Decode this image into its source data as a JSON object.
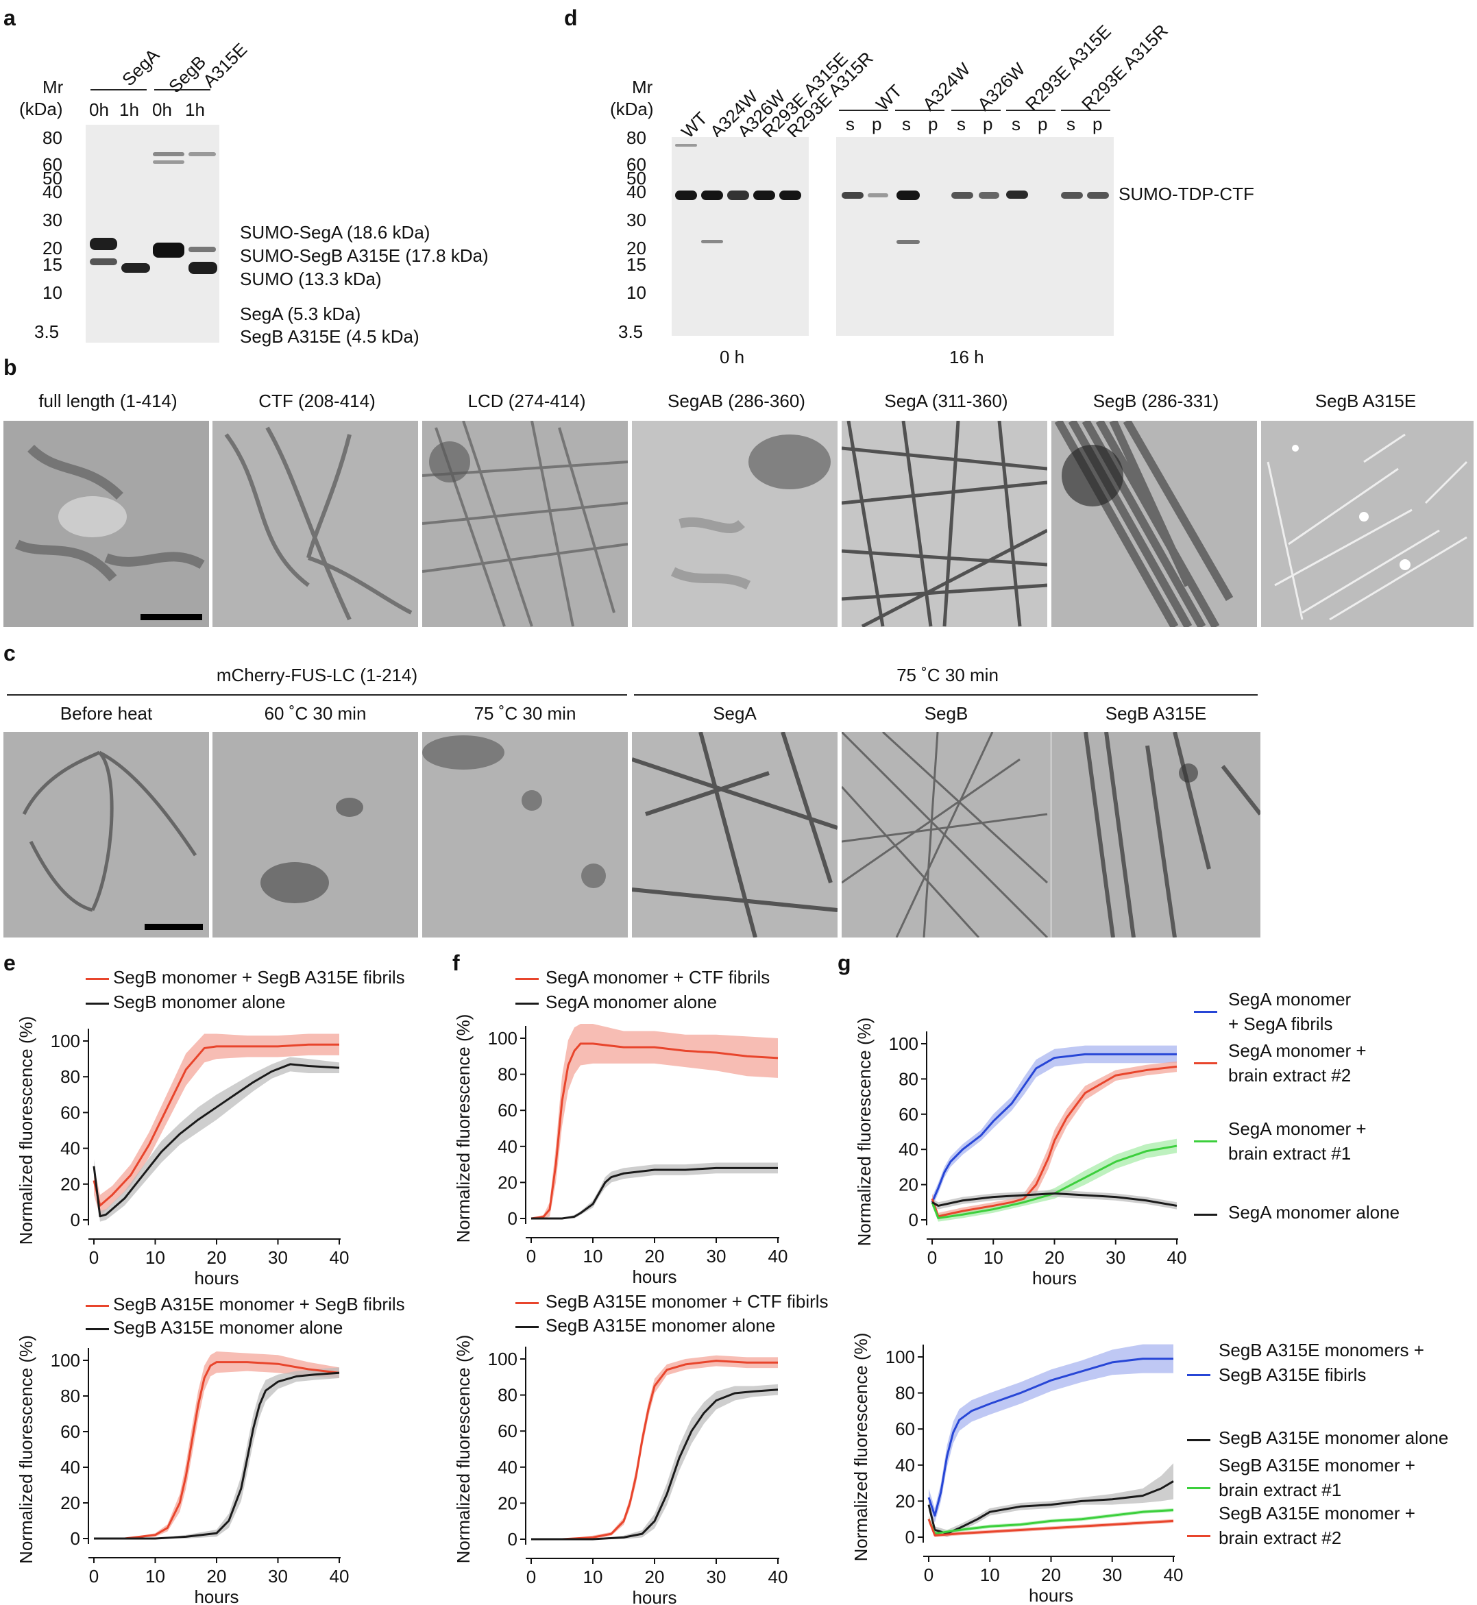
{
  "panel_labels": {
    "a": "a",
    "b": "b",
    "c": "c",
    "d": "d",
    "e": "e",
    "f": "f",
    "g": "g"
  },
  "panel_a": {
    "mr_label": "Mr",
    "kda_label": "(kDa)",
    "groups": [
      "SegA",
      "SegB",
      "A315E"
    ],
    "lanes": [
      "0h",
      "1h",
      "0h",
      "1h"
    ],
    "markers": [
      "80",
      "60",
      "50",
      "40",
      "30",
      "20",
      "15",
      "10",
      "3.5"
    ],
    "annotations": [
      "SUMO-SegA (18.6 kDa)",
      "SUMO-SegB A315E (17.8 kDa)",
      "SUMO (13.3 kDa)",
      "SegA (5.3 kDa)",
      "SegB A315E (4.5 kDa)"
    ]
  },
  "panel_d": {
    "mr_label": "Mr",
    "kda_label": "(kDa)",
    "lanes_0h": [
      "WT",
      "A324W",
      "A326W",
      "R293E A315E",
      "R293E A315R"
    ],
    "groups_16h": [
      "WT",
      "A324W",
      "A326W",
      "R293E A315E",
      "R293E A315R"
    ],
    "sp": [
      "s",
      "p"
    ],
    "markers": [
      "80",
      "60",
      "50",
      "40",
      "30",
      "20",
      "15",
      "10",
      "3.5"
    ],
    "annotation": "SUMO-TDP-CTF",
    "time_0h": "0 h",
    "time_16h": "16 h"
  },
  "panel_b": {
    "titles": [
      "full length (1-414)",
      "CTF (208-414)",
      "LCD (274-414)",
      "SegAB (286-360)",
      "SegA (311-360)",
      "SegB (286-331)",
      "SegB A315E"
    ]
  },
  "panel_c": {
    "group_left": "mCherry-FUS-LC (1-214)",
    "group_right": "75 ˚C 30 min",
    "titles": [
      "Before heat",
      "60 ˚C 30 min",
      "75 ˚C 30 min",
      "SegA",
      "SegB",
      "SegB A315E"
    ]
  },
  "axes": {
    "ylabel": "Normalized fluorescence (%)",
    "xlabel": "hours",
    "yticks": [
      "0",
      "20",
      "40",
      "60",
      "80",
      "100"
    ],
    "xticks": [
      "0",
      "10",
      "20",
      "30",
      "40"
    ]
  },
  "colors": {
    "red": "#e8452c",
    "black": "#1a1a1a",
    "blue": "#2746d6",
    "green": "#3ccf3c",
    "red_band": "#f4a79b",
    "grey_band": "#bdbdbd",
    "blue_band": "#a9b6f0",
    "green_band": "#a8ecaa"
  },
  "chart_data": [
    {
      "id": "e_top",
      "type": "line",
      "xlabel": "hours",
      "ylabel": "Normalized fluorescence (%)",
      "xlim": [
        0,
        40
      ],
      "ylim": [
        0,
        100
      ],
      "series": [
        {
          "name": "SegB monomer + SegB A315E fibrils",
          "color": "red",
          "x": [
            0,
            1,
            3,
            6,
            9,
            12,
            15,
            18,
            20,
            25,
            30,
            35,
            40
          ],
          "y": [
            22,
            8,
            14,
            25,
            42,
            63,
            84,
            96,
            97,
            97,
            97,
            98,
            98
          ],
          "err": [
            8,
            6,
            5,
            6,
            7,
            8,
            9,
            8,
            7,
            6,
            6,
            6,
            6
          ]
        },
        {
          "name": "SegB monomer alone",
          "color": "black",
          "x": [
            0,
            1,
            2,
            5,
            8,
            11,
            14,
            17,
            20,
            23,
            26,
            29,
            32,
            35,
            40
          ],
          "y": [
            30,
            2,
            3,
            12,
            25,
            38,
            48,
            56,
            63,
            70,
            77,
            83,
            87,
            86,
            85
          ],
          "err": [
            4,
            3,
            3,
            4,
            5,
            6,
            6,
            7,
            7,
            6,
            5,
            4,
            4,
            4,
            3
          ]
        }
      ]
    },
    {
      "id": "e_bottom",
      "type": "line",
      "xlabel": "hours",
      "ylabel": "Normalized fluorescence (%)",
      "xlim": [
        0,
        40
      ],
      "ylim": [
        0,
        100
      ],
      "series": [
        {
          "name": "SegB A315E monomer + SegB fibrils",
          "color": "red",
          "x": [
            0,
            5,
            10,
            12,
            14,
            15,
            16,
            17,
            18,
            19,
            20,
            25,
            30,
            35,
            40
          ],
          "y": [
            0,
            0,
            2,
            6,
            20,
            35,
            55,
            75,
            90,
            97,
            99,
            99,
            98,
            95,
            93
          ],
          "err": [
            0,
            0,
            1,
            2,
            5,
            7,
            8,
            8,
            7,
            6,
            6,
            5,
            5,
            4,
            3
          ]
        },
        {
          "name": "SegB A315E monomer alone",
          "color": "black",
          "x": [
            0,
            5,
            10,
            15,
            20,
            22,
            24,
            25,
            26,
            27,
            28,
            30,
            33,
            36,
            40
          ],
          "y": [
            0,
            0,
            0,
            1,
            3,
            10,
            28,
            45,
            62,
            75,
            83,
            88,
            91,
            92,
            93
          ],
          "err": [
            0,
            0,
            0,
            1,
            2,
            4,
            7,
            8,
            8,
            7,
            6,
            4,
            3,
            3,
            3
          ]
        }
      ]
    },
    {
      "id": "f_top",
      "type": "line",
      "xlabel": "hours",
      "ylabel": "Normalized fluorescence (%)",
      "xlim": [
        0,
        40
      ],
      "ylim": [
        0,
        100
      ],
      "series": [
        {
          "name": "SegA monomer + CTF fibrils",
          "color": "red",
          "x": [
            0,
            2,
            3,
            4,
            5,
            6,
            7,
            8,
            10,
            15,
            20,
            25,
            30,
            35,
            40
          ],
          "y": [
            0,
            1,
            5,
            30,
            65,
            85,
            93,
            97,
            97,
            95,
            95,
            93,
            92,
            90,
            89
          ],
          "err": [
            0,
            1,
            4,
            10,
            14,
            14,
            13,
            12,
            11,
            9,
            9,
            9,
            10,
            11,
            11
          ]
        },
        {
          "name": "SegA monomer alone",
          "color": "black",
          "x": [
            0,
            5,
            7,
            8,
            10,
            11,
            12,
            13,
            15,
            20,
            25,
            30,
            35,
            40
          ],
          "y": [
            0,
            0,
            1,
            3,
            8,
            14,
            20,
            23,
            25,
            27,
            27,
            28,
            28,
            28
          ],
          "err": [
            0,
            0,
            1,
            1,
            2,
            2,
            3,
            3,
            3,
            3,
            3,
            3,
            3,
            3
          ]
        }
      ]
    },
    {
      "id": "f_bottom",
      "type": "line",
      "xlabel": "hours",
      "ylabel": "Normalized fluorescence (%)",
      "xlim": [
        0,
        40
      ],
      "ylim": [
        0,
        100
      ],
      "series": [
        {
          "name": "SegB A315E monomer + CTF fibirls",
          "color": "red",
          "x": [
            0,
            5,
            10,
            13,
            15,
            16,
            17,
            18,
            19,
            20,
            22,
            25,
            30,
            35,
            40
          ],
          "y": [
            0,
            0,
            1,
            3,
            10,
            20,
            35,
            55,
            72,
            85,
            94,
            97,
            99,
            98,
            98
          ],
          "err": [
            0,
            0,
            1,
            1,
            2,
            3,
            4,
            4,
            4,
            4,
            3,
            3,
            3,
            3,
            3
          ]
        },
        {
          "name": "SegB A315E monomer alone",
          "color": "black",
          "x": [
            0,
            5,
            10,
            15,
            18,
            20,
            22,
            24,
            26,
            28,
            30,
            33,
            36,
            40
          ],
          "y": [
            0,
            0,
            0,
            1,
            3,
            10,
            25,
            45,
            60,
            70,
            77,
            81,
            82,
            83
          ],
          "err": [
            0,
            0,
            0,
            1,
            2,
            4,
            6,
            7,
            7,
            6,
            5,
            4,
            3,
            3
          ]
        }
      ]
    },
    {
      "id": "g_top",
      "type": "line",
      "xlabel": "hours",
      "ylabel": "Normalized fluorescence (%)",
      "xlim": [
        0,
        40
      ],
      "ylim": [
        0,
        100
      ],
      "series": [
        {
          "name": "SegA monomer + SegA fibrils",
          "color": "blue",
          "x": [
            0,
            1,
            2,
            3,
            5,
            8,
            10,
            13,
            15,
            17,
            20,
            25,
            30,
            35,
            40
          ],
          "y": [
            10,
            18,
            27,
            33,
            40,
            48,
            56,
            66,
            76,
            86,
            92,
            94,
            94,
            94,
            94
          ],
          "err": [
            3,
            3,
            3,
            3,
            3,
            3,
            4,
            4,
            5,
            5,
            5,
            5,
            5,
            5,
            5
          ]
        },
        {
          "name": "SegA monomer + brain extract #2",
          "color": "red",
          "x": [
            0,
            1,
            5,
            10,
            13,
            15,
            17,
            19,
            20,
            22,
            25,
            30,
            35,
            40
          ],
          "y": [
            12,
            2,
            5,
            8,
            10,
            12,
            20,
            35,
            45,
            58,
            72,
            82,
            85,
            87
          ],
          "err": [
            3,
            2,
            2,
            2,
            2,
            3,
            5,
            6,
            6,
            5,
            4,
            3,
            3,
            3
          ]
        },
        {
          "name": "SegA monomer + brain extract #1",
          "color": "green",
          "x": [
            0,
            1,
            5,
            10,
            15,
            20,
            25,
            30,
            35,
            40
          ],
          "y": [
            10,
            1,
            3,
            6,
            10,
            15,
            24,
            33,
            39,
            42
          ],
          "err": [
            2,
            2,
            2,
            2,
            2,
            3,
            4,
            4,
            4,
            4
          ]
        },
        {
          "name": "SegA monomer alone",
          "color": "black",
          "x": [
            0,
            1,
            5,
            10,
            15,
            20,
            25,
            30,
            35,
            40
          ],
          "y": [
            10,
            8,
            11,
            13,
            14,
            15,
            14,
            13,
            11,
            8
          ],
          "err": [
            2,
            2,
            2,
            2,
            2,
            2,
            2,
            2,
            2,
            2
          ]
        }
      ]
    },
    {
      "id": "g_bottom",
      "type": "line",
      "xlabel": "hours",
      "ylabel": "Normalized fluorescence (%)",
      "xlim": [
        0,
        40
      ],
      "ylim": [
        0,
        100
      ],
      "series": [
        {
          "name": "SegB A315E monomers + SegB A315E fibirls",
          "color": "blue",
          "x": [
            0,
            1,
            2,
            3,
            4,
            5,
            7,
            10,
            15,
            20,
            25,
            30,
            35,
            40
          ],
          "y": [
            22,
            12,
            25,
            45,
            58,
            65,
            70,
            74,
            80,
            87,
            92,
            97,
            99,
            99
          ],
          "err": [
            5,
            4,
            5,
            6,
            6,
            6,
            6,
            6,
            6,
            6,
            6,
            7,
            8,
            8
          ]
        },
        {
          "name": "SegB A315E monomer alone",
          "color": "black",
          "x": [
            0,
            1,
            3,
            5,
            8,
            10,
            15,
            20,
            25,
            30,
            35,
            38,
            40
          ],
          "y": [
            18,
            4,
            2,
            5,
            10,
            14,
            17,
            18,
            20,
            21,
            23,
            27,
            31
          ],
          "err": [
            3,
            2,
            2,
            2,
            2,
            2,
            2,
            2,
            2,
            3,
            4,
            7,
            10
          ]
        },
        {
          "name": "SegB A315E monomer + brain extract #1",
          "color": "green",
          "x": [
            0,
            1,
            5,
            10,
            15,
            20,
            25,
            30,
            35,
            40
          ],
          "y": [
            10,
            2,
            4,
            6,
            7,
            9,
            10,
            12,
            14,
            15
          ],
          "err": [
            2,
            1,
            1,
            1,
            1,
            1,
            1,
            1,
            1,
            1
          ]
        },
        {
          "name": "SegB A315E monomer + brain extract #2",
          "color": "red",
          "x": [
            0,
            1,
            5,
            10,
            15,
            20,
            25,
            30,
            35,
            40
          ],
          "y": [
            10,
            1,
            2,
            3,
            4,
            5,
            6,
            7,
            8,
            9
          ],
          "err": [
            2,
            1,
            1,
            1,
            1,
            1,
            1,
            1,
            1,
            1
          ]
        }
      ]
    }
  ]
}
